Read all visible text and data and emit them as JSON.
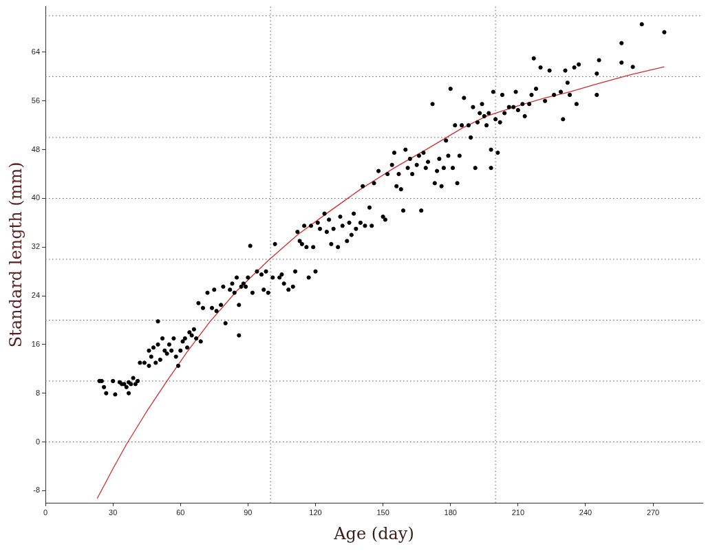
{
  "chart_data": {
    "type": "scatter",
    "xlabel": "Age (day)",
    "ylabel": "Standard length (mm)",
    "xlim": [
      0,
      292
    ],
    "ylim": [
      -10,
      71.5
    ],
    "xticks": [
      0,
      30,
      60,
      90,
      120,
      150,
      180,
      210,
      240,
      270
    ],
    "yticks": [
      -8,
      0,
      8,
      16,
      24,
      32,
      40,
      48,
      56,
      64
    ],
    "marker": "circle",
    "ref_lines": [
      {
        "axis": "y",
        "value": 0,
        "color": "#555555",
        "line_style": "dotted"
      },
      {
        "axis": "y",
        "value": 10,
        "color": "#555555",
        "line_style": "dotted"
      },
      {
        "axis": "y",
        "value": 20,
        "color": "#555555",
        "line_style": "dotted"
      },
      {
        "axis": "y",
        "value": 30,
        "color": "#555555",
        "line_style": "dotted"
      },
      {
        "axis": "y",
        "value": 40,
        "color": "#555555",
        "line_style": "dotted"
      },
      {
        "axis": "y",
        "value": 50,
        "color": "#555555",
        "line_style": "dotted"
      },
      {
        "axis": "y",
        "value": 60,
        "color": "#555555",
        "line_style": "dotted"
      },
      {
        "axis": "y",
        "value": 70,
        "color": "#555555",
        "line_style": "dotted"
      },
      {
        "axis": "x",
        "value": 100,
        "color": "#555555",
        "line_style": "dotted"
      },
      {
        "axis": "x",
        "value": 200,
        "color": "#555555",
        "line_style": "dotted"
      }
    ],
    "series": [
      {
        "type": "scatter",
        "color": "#000000",
        "x": [
          24,
          25,
          26,
          27,
          30,
          31,
          33,
          34,
          35,
          36,
          37,
          37,
          38,
          39,
          40,
          41,
          42,
          44,
          46,
          46,
          47,
          48,
          49,
          50,
          50,
          51,
          52,
          53,
          54,
          55,
          56,
          57,
          58,
          59,
          60,
          61,
          62,
          63,
          64,
          65,
          66,
          67,
          68,
          69,
          70,
          72,
          74,
          75,
          76,
          78,
          79,
          80,
          82,
          83,
          84,
          85,
          86,
          86,
          87,
          88,
          89,
          90,
          91,
          92,
          94,
          96,
          97,
          98,
          99,
          101,
          102,
          104,
          105,
          106,
          108,
          110,
          111,
          112,
          113,
          114,
          115,
          116,
          117,
          118,
          119,
          120,
          121,
          122,
          124,
          125,
          126,
          127,
          128,
          130,
          131,
          132,
          134,
          135,
          136,
          137,
          138,
          140,
          141,
          142,
          144,
          145,
          146,
          148,
          150,
          151,
          152,
          154,
          155,
          156,
          157,
          158,
          159,
          160,
          161,
          162,
          163,
          165,
          166,
          167,
          168,
          169,
          170,
          172,
          173,
          174,
          175,
          176,
          177,
          178,
          179,
          180,
          181,
          182,
          183,
          184,
          185,
          186,
          188,
          189,
          190,
          191,
          192,
          193,
          194,
          195,
          196,
          197,
          198,
          198,
          199,
          200,
          201,
          202,
          203,
          204,
          206,
          208,
          209,
          210,
          212,
          213,
          215,
          216,
          217,
          218,
          220,
          222,
          224,
          226,
          229,
          230,
          231,
          232,
          233,
          235,
          236,
          237,
          245,
          245,
          246,
          256,
          256,
          261,
          265,
          275
        ],
        "values": [
          10,
          10,
          9,
          8,
          10,
          7.8,
          9.8,
          9.5,
          9.5,
          9,
          9.8,
          8,
          9.5,
          10.5,
          9.5,
          10,
          13,
          13,
          15,
          12.5,
          14,
          15.5,
          13,
          19.8,
          16,
          13.5,
          17,
          15,
          14.5,
          16,
          15,
          17,
          14,
          12.5,
          15,
          16.5,
          17,
          15.5,
          18,
          17.5,
          18.5,
          17,
          22.8,
          16.5,
          22,
          24.5,
          22,
          25,
          21.5,
          22.5,
          25.5,
          19.5,
          25,
          26,
          24.5,
          27,
          17.5,
          22.5,
          25.5,
          26,
          25.5,
          27,
          32.2,
          24.5,
          28,
          27.5,
          25,
          28,
          24.5,
          27,
          32.5,
          27,
          27.5,
          26,
          25,
          25.5,
          28,
          34.5,
          33,
          32.5,
          35.5,
          32,
          27,
          35.5,
          32,
          28,
          36,
          35,
          37.5,
          34.5,
          36.5,
          32.5,
          35,
          32,
          37,
          35.5,
          33,
          36,
          34,
          37.5,
          35,
          36,
          42,
          35.5,
          38.5,
          35.5,
          42.5,
          44.5,
          37,
          36.5,
          44,
          45.5,
          47.5,
          42,
          44,
          41.5,
          38,
          48,
          45,
          46.5,
          44,
          45.5,
          47,
          38,
          47.5,
          45,
          46,
          55.5,
          42.5,
          44.5,
          46.5,
          42,
          45,
          49.5,
          47,
          58,
          45,
          52,
          42.5,
          47,
          52,
          56.5,
          52,
          50,
          55,
          45,
          52.5,
          54,
          55.5,
          53.5,
          52,
          54,
          48,
          45,
          57.5,
          53,
          47.5,
          52.5,
          57,
          54,
          55,
          55,
          57.5,
          54.5,
          55.5,
          53.5,
          55.5,
          57,
          63,
          58,
          61.5,
          56,
          61,
          57,
          57.5,
          53,
          61,
          59,
          57,
          61.5,
          55.5,
          62,
          60.5,
          57,
          62.7,
          65.5,
          62.3,
          61.6,
          68.6,
          67.3
        ]
      },
      {
        "type": "line",
        "color": "#d42a2a",
        "marker": "none",
        "x": [
          23,
          30,
          36,
          45,
          54,
          63,
          73,
          85,
          99,
          112,
          126,
          140,
          155,
          170,
          185,
          196,
          210,
          222,
          233,
          245,
          260,
          275
        ],
        "values": [
          -9.3,
          -4.4,
          -0.4,
          5,
          10,
          14.8,
          19.7,
          24.8,
          29.8,
          34,
          37.8,
          41.5,
          45,
          48.2,
          51.5,
          53.5,
          55.2,
          56.5,
          57.5,
          58.8,
          60.3,
          61.6
        ]
      }
    ]
  }
}
